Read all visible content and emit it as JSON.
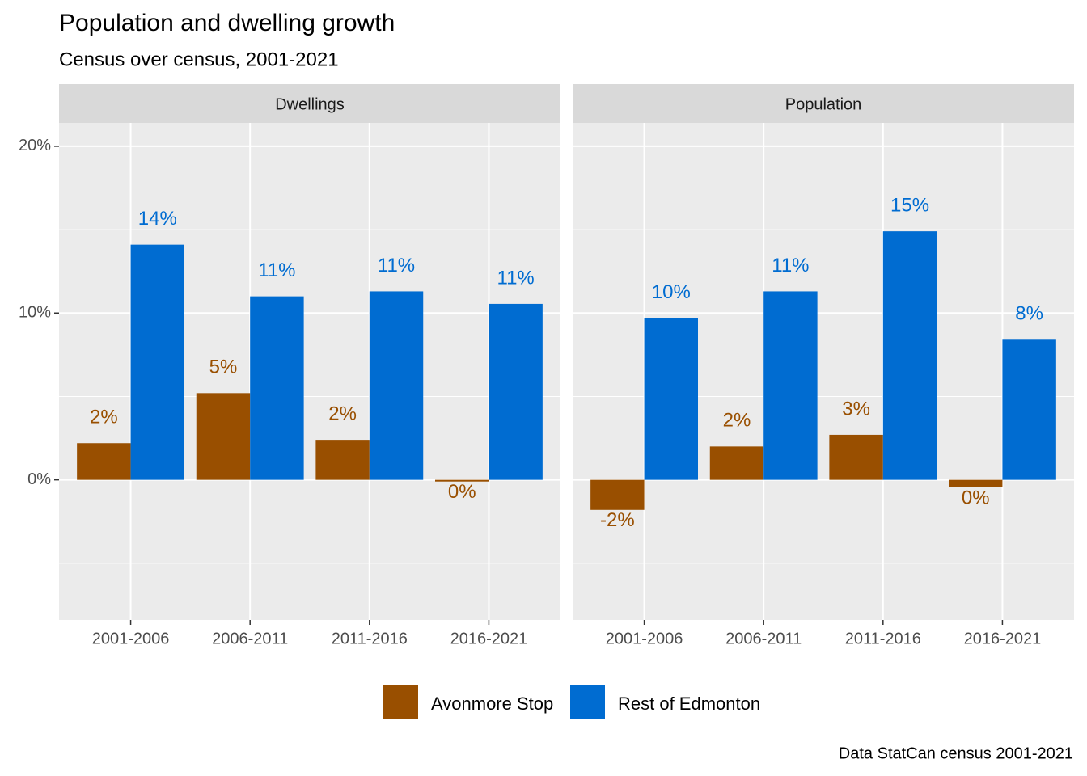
{
  "title": "Population and dwelling growth",
  "subtitle": "Census over census, 2001-2021",
  "caption": "Data StatCan census 2001-2021",
  "chart_data": [
    {
      "type": "bar",
      "facet": "Dwellings",
      "categories": [
        "2001-2006",
        "2006-2011",
        "2011-2016",
        "2016-2021"
      ],
      "series": [
        {
          "name": "Avonmore Stop",
          "color": "#994F00",
          "values": [
            2.2,
            5.2,
            2.4,
            -0.1
          ],
          "value_labels": [
            "2%",
            "5%",
            "2%",
            "0%"
          ]
        },
        {
          "name": "Rest of Edmonton",
          "color": "#006CD1",
          "values": [
            14.1,
            11.0,
            11.3,
            10.55
          ],
          "value_labels": [
            "14%",
            "11%",
            "11%",
            "11%"
          ]
        }
      ],
      "ylim": [
        -8.4,
        21.4
      ],
      "yticks": [
        {
          "value": 0,
          "label": "0%"
        },
        {
          "value": 10,
          "label": "10%"
        },
        {
          "value": 20,
          "label": "20%"
        }
      ],
      "minor_yticks": [
        -5,
        5,
        15
      ],
      "grid": true
    },
    {
      "type": "bar",
      "facet": "Population",
      "categories": [
        "2001-2006",
        "2006-2011",
        "2011-2016",
        "2016-2021"
      ],
      "series": [
        {
          "name": "Avonmore Stop",
          "color": "#994F00",
          "values": [
            -1.8,
            2.0,
            2.7,
            -0.45
          ],
          "value_labels": [
            "-2%",
            "2%",
            "3%",
            "0%"
          ]
        },
        {
          "name": "Rest of Edmonton",
          "color": "#006CD1",
          "values": [
            9.7,
            11.3,
            14.9,
            8.4
          ],
          "value_labels": [
            "10%",
            "11%",
            "15%",
            "8%"
          ]
        }
      ],
      "ylim": [
        -8.4,
        21.4
      ],
      "yticks": [
        {
          "value": 0,
          "label": "0%"
        },
        {
          "value": 10,
          "label": "10%"
        },
        {
          "value": 20,
          "label": "20%"
        }
      ],
      "minor_yticks": [
        -5,
        5,
        15
      ],
      "grid": true
    }
  ]
}
